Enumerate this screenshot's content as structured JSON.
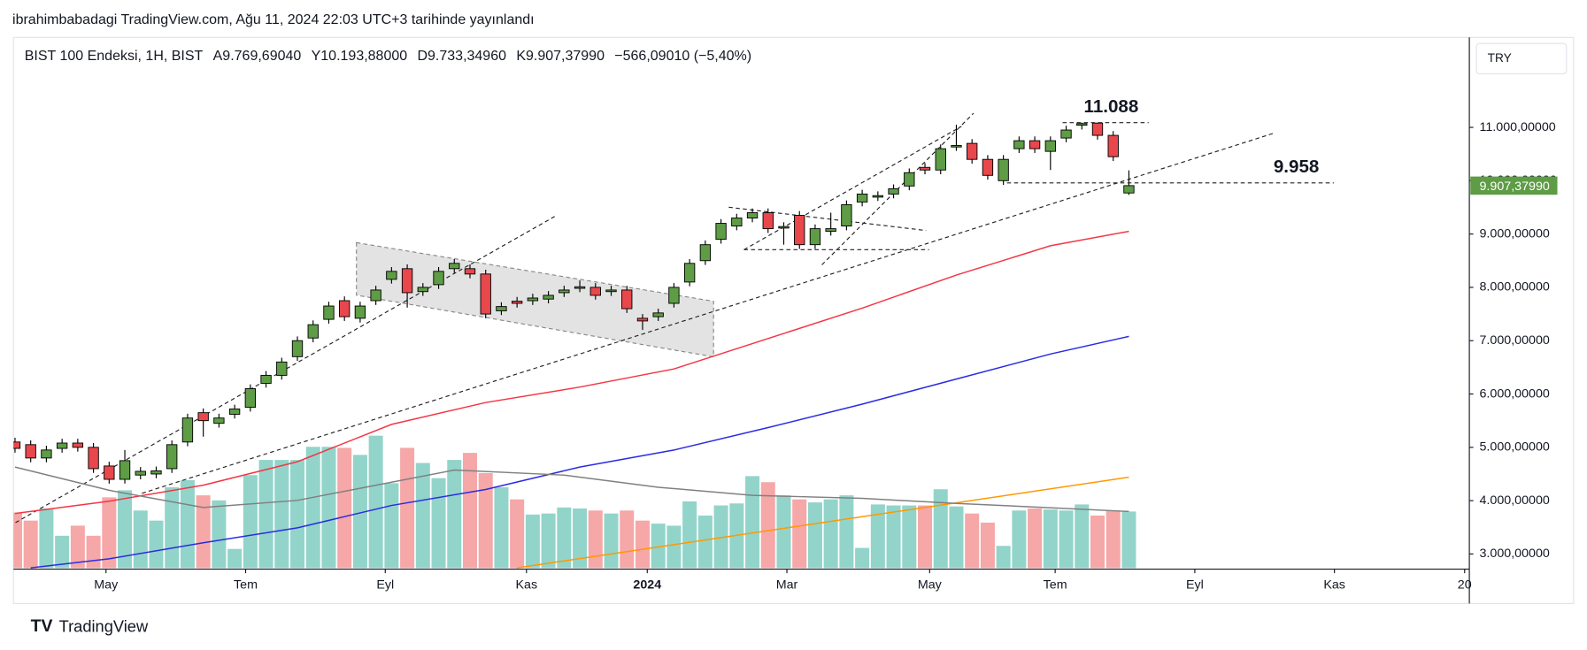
{
  "header": {
    "published": "ibrahimbabadagi TradingView.com, Ağu 11, 2024 22:03 UTC+3 tarihinde yayınlandı",
    "brand": "TradingView",
    "currency": "TRY"
  },
  "chart_data": {
    "type": "candlestick",
    "title": "BIST 100 Endeksi, 1H, BIST",
    "ohlc_labels": [
      "A",
      "Y",
      "D",
      "K"
    ],
    "ohlc_value_labels": [
      "9.769,69040",
      "10.193,88000",
      "9.733,34960",
      "9.907,37990"
    ],
    "change_label": "−566,09010 (−5,40%)",
    "last_price_label": "9.907,37990",
    "colors": {
      "up": "#5e9c45",
      "down": "#e8474c",
      "volume_up": "#92d4ca",
      "volume_down": "#f6a7a7"
    },
    "open": [
      5100,
      5050,
      4800,
      4980,
      5080,
      5000,
      4650,
      4400,
      4480,
      4500,
      4600,
      5100,
      5650,
      5450,
      5620,
      5750,
      6200,
      6350,
      6700,
      7050,
      7400,
      7750,
      7420,
      7750,
      8150,
      8350,
      7920,
      8050,
      8350,
      8350,
      8250,
      7560,
      7740,
      7750,
      7780,
      7900,
      7990,
      8000,
      7920,
      7950,
      7420,
      7450,
      7700,
      8100,
      8500,
      8900,
      9150,
      9300,
      9400,
      9120,
      9350,
      8800,
      9050,
      9150,
      9600,
      9700,
      9750,
      9900,
      10250,
      10200,
      10640,
      10700,
      10400,
      10000,
      10600,
      10750,
      10550,
      10800,
      11040,
      11080,
      10850,
      9769.6904
    ],
    "high": [
      5180,
      5130,
      5030,
      5160,
      5160,
      5080,
      4730,
      4950,
      4630,
      4640,
      5130,
      5630,
      5730,
      5630,
      5800,
      6180,
      6430,
      6680,
      7080,
      7380,
      7730,
      7830,
      7730,
      8030,
      8380,
      8430,
      8080,
      8380,
      8530,
      8430,
      8330,
      7720,
      7820,
      7880,
      7930,
      8030,
      8130,
      8080,
      8030,
      8030,
      7500,
      7600,
      8080,
      8530,
      8880,
      9280,
      9380,
      9480,
      9480,
      9220,
      9430,
      9180,
      9400,
      9630,
      9830,
      9800,
      9930,
      10230,
      10330,
      10680,
      11050,
      10780,
      10480,
      10480,
      10830,
      10830,
      10830,
      11030,
      11088,
      11088,
      10930,
      10193.88
    ],
    "low": [
      4900,
      4720,
      4720,
      4900,
      4920,
      4520,
      4320,
      4320,
      4400,
      4420,
      4520,
      5020,
      5200,
      5370,
      5540,
      5670,
      6120,
      6270,
      6620,
      6970,
      7320,
      7370,
      7340,
      7670,
      8070,
      7620,
      7840,
      7970,
      8270,
      8170,
      7420,
      7480,
      7620,
      7670,
      7700,
      7820,
      7910,
      7770,
      7840,
      7520,
      7200,
      7370,
      7620,
      8020,
      8420,
      8820,
      9070,
      9220,
      9020,
      8800,
      8720,
      8720,
      8970,
      9070,
      9520,
      9620,
      9670,
      9820,
      10120,
      10120,
      10560,
      10320,
      10020,
      9920,
      10520,
      10520,
      10200,
      10720,
      10960,
      10770,
      10370,
      9733.3496
    ],
    "close": [
      4980,
      4800,
      4950,
      5080,
      5000,
      4600,
      4400,
      4750,
      4550,
      4560,
      5050,
      5550,
      5500,
      5550,
      5720,
      6100,
      6350,
      6600,
      7000,
      7300,
      7650,
      7450,
      7650,
      7950,
      8300,
      7900,
      8000,
      8300,
      8450,
      8250,
      7500,
      7640,
      7700,
      7800,
      7850,
      7950,
      8010,
      7850,
      7950,
      7600,
      7370,
      7520,
      8000,
      8450,
      8800,
      9200,
      9300,
      9400,
      9100,
      9140,
      8800,
      9100,
      9100,
      9550,
      9750,
      9720,
      9850,
      10150,
      10200,
      10600,
      10660,
      10400,
      10100,
      10400,
      10750,
      10600,
      10750,
      10950,
      11070,
      10850,
      10450,
      9907.3799
    ],
    "volume": [
      55,
      47,
      59,
      32,
      42,
      32,
      70,
      77,
      57,
      47,
      80,
      87,
      72,
      67,
      19,
      92,
      107,
      107,
      107,
      120,
      120,
      119,
      112,
      131,
      84,
      119,
      104,
      89,
      107,
      114,
      94,
      80,
      68,
      53,
      54,
      60,
      59,
      57,
      54,
      57,
      47,
      44,
      42,
      66,
      52,
      62,
      64,
      91,
      85,
      72,
      68,
      65,
      68,
      72,
      20,
      63,
      62,
      62,
      62,
      78,
      61,
      54,
      45,
      22,
      57,
      59,
      58,
      57,
      63,
      52,
      57,
      56
    ],
    "volume_lim": [
      0,
      522
    ],
    "lines": [
      {
        "axis": "y",
        "color": "#f23645",
        "x": [
          0,
          6,
          12,
          18,
          24,
          30,
          36,
          42,
          48,
          54,
          60,
          66,
          71
        ],
        "values": [
          3760,
          3990,
          4290,
          4730,
          5430,
          5840,
          6130,
          6470,
          7040,
          7610,
          8230,
          8780,
          9050
        ]
      },
      {
        "axis": "y",
        "color": "#2b2be0",
        "x": [
          1,
          6,
          12,
          18,
          24,
          30,
          36,
          42,
          48,
          54,
          60,
          66,
          71
        ],
        "values": [
          2740,
          2910,
          3210,
          3490,
          3910,
          4210,
          4630,
          4950,
          5370,
          5810,
          6280,
          6750,
          7080
        ]
      },
      {
        "axis": "y",
        "color": "#ff9800",
        "x": [
          32,
          71
        ],
        "values": [
          2740,
          4440
        ]
      },
      {
        "axis": "volume",
        "color": "#808080",
        "x": [
          0,
          6,
          12,
          18,
          22,
          28,
          35,
          41,
          47,
          54,
          60,
          67,
          71
        ],
        "values": [
          100,
          77,
          60,
          67,
          79,
          97,
          92,
          80,
          72,
          69,
          64,
          59,
          56
        ]
      }
    ],
    "annotations": [
      {
        "value": 11088,
        "label": "11.088"
      },
      {
        "value": 9958,
        "label": "9.958"
      }
    ],
    "xlim": [
      -0.1,
      92.7
    ],
    "xticks": [
      {
        "value": 5.8,
        "label": "May"
      },
      {
        "value": 14.7,
        "label": "Tem"
      },
      {
        "value": 23.6,
        "label": "Eyl"
      },
      {
        "value": 32.6,
        "label": "Kas"
      },
      {
        "value": 40.3,
        "label": "2024"
      },
      {
        "value": 49.2,
        "label": "Mar"
      },
      {
        "value": 58.3,
        "label": "May"
      },
      {
        "value": 66.3,
        "label": "Tem"
      },
      {
        "value": 75.2,
        "label": "Eyl"
      },
      {
        "value": 84.1,
        "label": "Kas"
      },
      {
        "value": 92.4,
        "label": "20"
      }
    ],
    "ylim": [
      2735,
      12630
    ],
    "yticks": [
      {
        "value": 11000,
        "label": "11.000,00000"
      },
      {
        "value": 10000,
        "label": "10.000,00000"
      },
      {
        "value": 9000,
        "label": "9.000,00000"
      },
      {
        "value": 8000,
        "label": "8.000,00000"
      },
      {
        "value": 7000,
        "label": "7.000,00000"
      },
      {
        "value": 6000,
        "label": "6.000,00000"
      },
      {
        "value": 5000,
        "label": "5.000,00000"
      },
      {
        "value": 4000,
        "label": "4.000,00000"
      },
      {
        "value": 3000,
        "label": "3.000,00000"
      }
    ]
  }
}
